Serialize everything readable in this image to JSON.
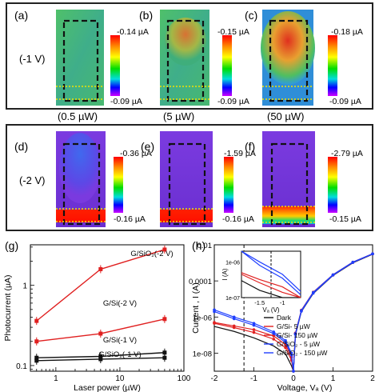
{
  "colors": {
    "heat_hot": "#e0301e",
    "heat_mid": "#40c040",
    "heat_cold": "#3050ff",
    "purple": "#8a2be2",
    "series_red": "#e02020",
    "series_black": "#111111",
    "series_blue": "#1f3fff",
    "marker_yellow": "#f2e200"
  },
  "top_row": {
    "bias": "(-1 V)",
    "panels": [
      {
        "letter": "(a)",
        "cb_max": "-0.14 µA",
        "cb_min": "-0.09 µA",
        "power": "(0.5 µW)"
      },
      {
        "letter": "(b)",
        "cb_max": "-0.15 µA",
        "cb_min": "-0.09 µA",
        "power": "(5 µW)"
      },
      {
        "letter": "(c)",
        "cb_max": "-0.18 µA",
        "cb_min": "-0.09 µA",
        "power": "(50 µW)"
      }
    ]
  },
  "mid_row": {
    "bias": "(-2 V)",
    "panels": [
      {
        "letter": "(d)",
        "cb_max": "-0.36 µA",
        "cb_min": "-0.16 µA"
      },
      {
        "letter": "(e)",
        "cb_max": "-1.59 µA",
        "cb_min": "-0.16 µA"
      },
      {
        "letter": "(f)",
        "cb_max": "-2.79 µA",
        "cb_min": "-0.15 µA"
      }
    ]
  },
  "chart_data": [
    {
      "panel": "(g)",
      "type": "line",
      "xlabel": "Laser power (µW)",
      "ylabel": "Photocurrent (µA)",
      "x_scale": "log",
      "y_scale": "log",
      "xlim": [
        0.4,
        100
      ],
      "ylim": [
        0.085,
        3.2
      ],
      "x_ticks": [
        {
          "v": 1,
          "label": "1"
        },
        {
          "v": 10,
          "label": "10"
        },
        {
          "v": 100,
          "label": "100"
        }
      ],
      "y_ticks": [
        {
          "v": 0.1,
          "label": "0.1"
        },
        {
          "v": 1,
          "label": "1"
        }
      ],
      "series": [
        {
          "name": "G/SiO₂(-2 V)",
          "color": "#e02020",
          "x": [
            0.5,
            5,
            50
          ],
          "y": [
            0.36,
            1.59,
            2.79
          ]
        },
        {
          "name": "G/Si(-2 V)",
          "color": "#e02020",
          "x": [
            0.5,
            5,
            50
          ],
          "y": [
            0.2,
            0.25,
            0.38
          ]
        },
        {
          "name": "G/Si(-1 V)",
          "color": "#111111",
          "x": [
            0.5,
            5,
            50
          ],
          "y": [
            0.125,
            0.13,
            0.145
          ]
        },
        {
          "name": "G/SiO₂(-1 V)",
          "color": "#111111",
          "x": [
            0.5,
            5,
            50
          ],
          "y": [
            0.115,
            0.12,
            0.125
          ]
        }
      ]
    },
    {
      "panel": "(h)",
      "type": "line",
      "xlabel": "Voltage, Vₐ (V)",
      "ylabel": "Current , I (A)",
      "x_scale": "linear",
      "y_scale": "log",
      "xlim": [
        -2,
        2
      ],
      "ylim": [
        1e-09,
        0.01
      ],
      "x_ticks": [
        {
          "v": -2,
          "label": "-2"
        },
        {
          "v": -1,
          "label": "-1"
        },
        {
          "v": 0,
          "label": "0"
        },
        {
          "v": 1,
          "label": "1"
        },
        {
          "v": 2,
          "label": "2"
        }
      ],
      "y_ticks": [
        {
          "v": 1e-08,
          "label": "1e-08"
        },
        {
          "v": 1e-06,
          "label": "1e-06"
        },
        {
          "v": 0.0001,
          "label": "0.0001"
        },
        {
          "v": 0.01,
          "label": "0.01"
        }
      ],
      "vline_x": -1.25,
      "series": [
        {
          "name": "Dark",
          "color": "#111111",
          "x": [
            -2,
            -1.5,
            -1,
            -0.5,
            -0.2,
            -0.05,
            0,
            0.05,
            0.2,
            0.5,
            1,
            1.5,
            2
          ],
          "y": [
            3e-07,
            1.6e-07,
            7e-08,
            2.5e-08,
            9e-09,
            2e-09,
            1e-09,
            1e-07,
            2e-06,
            2e-05,
            0.0002,
            0.001,
            0.003
          ]
        },
        {
          "name": "G/Si- 5 µW",
          "color": "#e02020",
          "x": [
            -2,
            -1.5,
            -1,
            -0.5,
            -0.2,
            -0.05,
            0,
            0.05,
            0.2,
            0.5,
            1,
            1.5,
            2
          ],
          "y": [
            4.5e-07,
            2.6e-07,
            1.4e-07,
            6e-08,
            2e-08,
            4e-09,
            1e-09,
            1.2e-07,
            2.2e-06,
            2.2e-05,
            0.00021,
            0.00105,
            0.0031
          ]
        },
        {
          "name": "G/Si- 150 µW",
          "color": "#e02020",
          "x": [
            -2,
            -1.5,
            -1,
            -0.5,
            -0.2,
            -0.05,
            0,
            0.05,
            0.2,
            0.5,
            1,
            1.5,
            2
          ],
          "y": [
            5e-07,
            3.2e-07,
            2e-07,
            9e-08,
            3e-08,
            6e-09,
            1e-09,
            1.3e-07,
            2.4e-06,
            2.4e-05,
            0.00022,
            0.0011,
            0.0032
          ]
        },
        {
          "name": "G/SiO₂ - 5 µW",
          "color": "#1f3fff",
          "x": [
            -2,
            -1.5,
            -1,
            -0.5,
            -0.2,
            -0.05,
            0,
            0.05,
            0.2,
            0.5,
            1,
            1.5,
            2
          ],
          "y": [
            2e-06,
            8e-07,
            3.5e-07,
            1.2e-07,
            4e-08,
            8e-09,
            1e-09,
            1.1e-07,
            2.1e-06,
            2.1e-05,
            0.00021,
            0.00105,
            0.0031
          ]
        },
        {
          "name": "G/SiO₂ - 150 µW",
          "color": "#1f3fff",
          "x": [
            -2,
            -1.5,
            -1,
            -0.5,
            -0.2,
            -0.05,
            0,
            0.05,
            0.2,
            0.5,
            1,
            1.5,
            2
          ],
          "y": [
            2.5e-06,
            1e-06,
            4.5e-07,
            1.5e-07,
            5e-08,
            1e-08,
            1e-09,
            1.2e-07,
            2.3e-06,
            2.3e-05,
            0.00022,
            0.0011,
            0.0032
          ]
        }
      ],
      "inset": {
        "xlabel": "Vₐ (V)",
        "ylabel": "I (A)",
        "xlim": [
          -1.9,
          -0.6
        ],
        "ylim": [
          1e-07,
          2e-06
        ],
        "x_ticks": [
          {
            "v": -1.5,
            "label": "-1.5"
          },
          {
            "v": -1,
            "label": "-1"
          }
        ],
        "y_ticks": [
          {
            "v": 1e-07,
            "label": "1e-07"
          },
          {
            "v": 1e-06,
            "label": "1e-06"
          }
        ],
        "vline_x": -1.25
      }
    }
  ],
  "panel_g": {
    "letter": "(g)"
  },
  "panel_h": {
    "letter": "(h)"
  }
}
